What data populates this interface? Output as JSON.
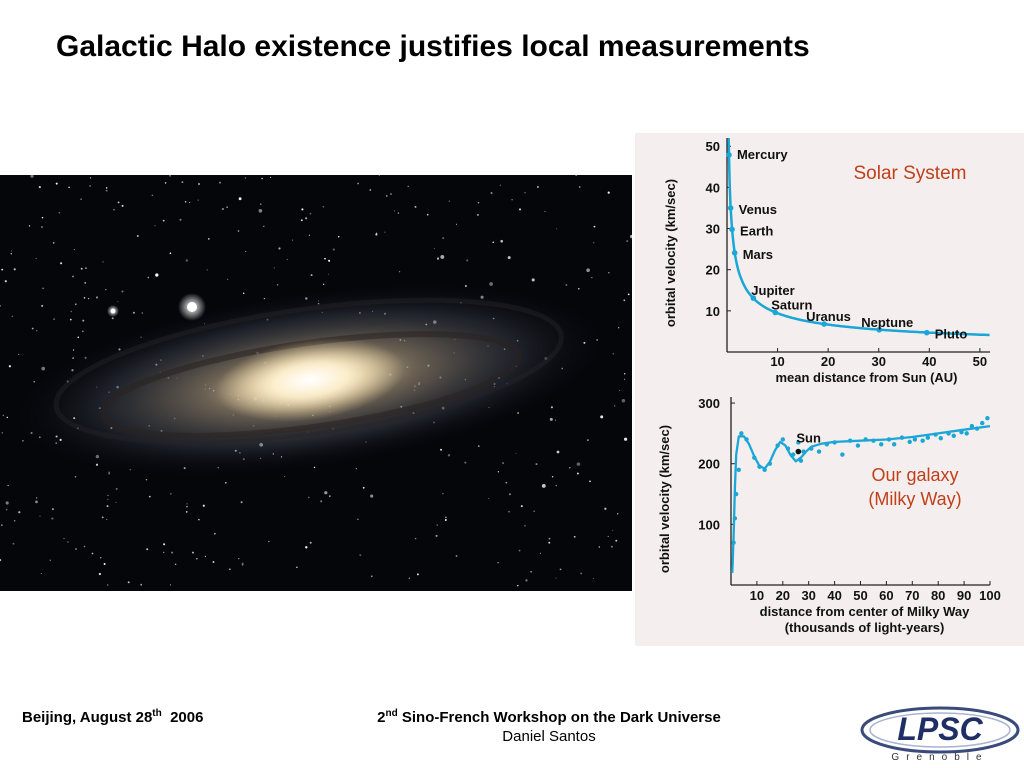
{
  "slide": {
    "title": "Galactic Halo existence  justifies local measurements"
  },
  "footer": {
    "location": "Beijing,  August 28",
    "location_sup": "th",
    "year": "  2006",
    "workshop_prefix": "2",
    "workshop_sup": "nd",
    "workshop_rest": " Sino-French Workshop on the Dark Universe",
    "author": "Daniel Santos"
  },
  "logo": {
    "text": "LPSC",
    "subtext": "Grenoble"
  },
  "colors": {
    "curve": "#1aa6d6",
    "annotation": "#c0401a",
    "panel_bg": "#f4efee"
  },
  "chart_data": [
    {
      "type": "line",
      "title": "Solar System",
      "xlabel": "mean distance from Sun (AU)",
      "ylabel": "orbital velocity (km/sec)",
      "xlim": [
        0,
        52
      ],
      "ylim": [
        0,
        52
      ],
      "xticks": [
        10,
        20,
        30,
        40,
        50
      ],
      "yticks": [
        10,
        20,
        30,
        40,
        50
      ],
      "points": [
        {
          "name": "Mercury",
          "x": 0.39,
          "y": 47.9
        },
        {
          "name": "Venus",
          "x": 0.72,
          "y": 35.0
        },
        {
          "name": "Earth",
          "x": 1.0,
          "y": 29.8
        },
        {
          "name": "Mars",
          "x": 1.52,
          "y": 24.1
        },
        {
          "name": "Jupiter",
          "x": 5.2,
          "y": 13.1
        },
        {
          "name": "Saturn",
          "x": 9.54,
          "y": 9.6
        },
        {
          "name": "Uranus",
          "x": 19.2,
          "y": 6.8
        },
        {
          "name": "Neptune",
          "x": 30.1,
          "y": 5.4
        },
        {
          "name": "Pluto",
          "x": 39.5,
          "y": 4.7
        }
      ]
    },
    {
      "type": "line",
      "title": "Our galaxy\n(Milky Way)",
      "xlabel": "distance from center of Milky Way\n(thousands of light-years)",
      "ylabel": "orbital velocity (km/sec)",
      "xlim": [
        0,
        100
      ],
      "ylim": [
        0,
        310
      ],
      "xticks": [
        10,
        20,
        30,
        40,
        50,
        60,
        70,
        80,
        90,
        100
      ],
      "yticks": [
        100,
        200,
        300
      ],
      "annotation": "Sun",
      "sun": {
        "x": 26,
        "y": 220
      },
      "curve": [
        [
          0.5,
          20
        ],
        [
          1,
          80
        ],
        [
          1.5,
          160
        ],
        [
          2,
          215
        ],
        [
          3,
          245
        ],
        [
          5,
          245
        ],
        [
          7,
          232
        ],
        [
          9,
          212
        ],
        [
          11,
          196
        ],
        [
          13,
          192
        ],
        [
          15,
          203
        ],
        [
          17,
          222
        ],
        [
          19,
          236
        ],
        [
          21,
          230
        ],
        [
          23,
          214
        ],
        [
          25,
          204
        ],
        [
          27,
          210
        ],
        [
          29,
          220
        ],
        [
          31,
          228
        ],
        [
          35,
          233
        ],
        [
          40,
          236
        ],
        [
          50,
          238
        ],
        [
          60,
          240
        ],
        [
          70,
          244
        ],
        [
          80,
          250
        ],
        [
          90,
          256
        ],
        [
          100,
          262
        ]
      ],
      "points": [
        [
          1,
          70
        ],
        [
          1.5,
          110
        ],
        [
          2,
          150
        ],
        [
          3,
          190
        ],
        [
          4,
          250
        ],
        [
          6,
          240
        ],
        [
          9,
          210
        ],
        [
          11,
          195
        ],
        [
          13,
          190
        ],
        [
          15,
          200
        ],
        [
          18,
          230
        ],
        [
          20,
          240
        ],
        [
          22,
          225
        ],
        [
          24,
          215
        ],
        [
          26,
          235
        ],
        [
          27,
          205
        ],
        [
          28,
          220
        ],
        [
          31,
          225
        ],
        [
          34,
          220
        ],
        [
          37,
          232
        ],
        [
          40,
          235
        ],
        [
          43,
          215
        ],
        [
          46,
          238
        ],
        [
          49,
          230
        ],
        [
          52,
          240
        ],
        [
          55,
          238
        ],
        [
          58,
          232
        ],
        [
          61,
          240
        ],
        [
          63,
          232
        ],
        [
          66,
          243
        ],
        [
          69,
          236
        ],
        [
          71,
          240
        ],
        [
          74,
          238
        ],
        [
          76,
          243
        ],
        [
          79,
          248
        ],
        [
          81,
          242
        ],
        [
          84,
          250
        ],
        [
          86,
          246
        ],
        [
          89,
          252
        ],
        [
          91,
          250
        ],
        [
          93,
          262
        ],
        [
          95,
          258
        ],
        [
          97,
          267
        ],
        [
          99,
          275
        ]
      ]
    }
  ]
}
